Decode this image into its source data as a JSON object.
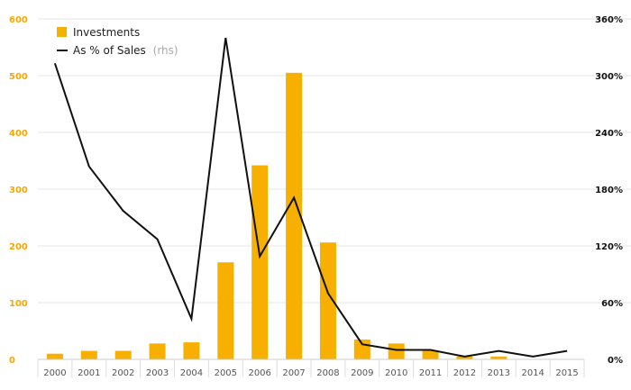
{
  "chart_data": {
    "type": "bar",
    "categories": [
      "2000",
      "2001",
      "2002",
      "2003",
      "2004",
      "2005",
      "2006",
      "2007",
      "2008",
      "2009",
      "2010",
      "2011",
      "2012",
      "2013",
      "2014",
      "2015"
    ],
    "series": [
      {
        "name": "Investments",
        "type": "bar",
        "axis": "left",
        "color": "#f7b000",
        "values": [
          10,
          15,
          15,
          28,
          30,
          171,
          342,
          505,
          206,
          35,
          28,
          15,
          5,
          5,
          0,
          0
        ]
      },
      {
        "name": "As % of Sales",
        "type": "line",
        "axis": "right",
        "color": "#111111",
        "values": [
          313,
          204,
          157,
          127,
          43,
          340,
          109,
          171,
          70,
          16,
          10,
          10,
          3,
          9,
          3,
          9
        ]
      }
    ],
    "legend": {
      "investments_label": "Investments",
      "line_label": "As % of Sales",
      "line_suffix": "(rhs)",
      "placement": "top-left"
    },
    "y_left": {
      "ylim": [
        0,
        600
      ],
      "ticks": [
        "0",
        "100",
        "200",
        "300",
        "400",
        "500",
        "600"
      ],
      "color": "#f5a800"
    },
    "y_right": {
      "ylim": [
        0,
        360
      ],
      "ticks": [
        "0%",
        "60%",
        "120%",
        "180%",
        "240%",
        "300%",
        "360%"
      ],
      "color": "#111111"
    },
    "grid": true,
    "title": "",
    "xlabel": "",
    "ylabel": ""
  }
}
